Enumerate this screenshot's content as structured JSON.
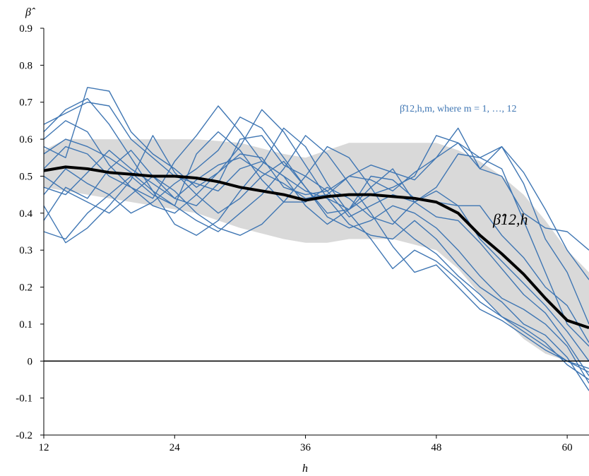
{
  "chart_data": {
    "type": "line",
    "ylabel": "β̂",
    "xlabel": "h",
    "xlim": [
      12,
      62
    ],
    "ylim": [
      -0.2,
      0.9
    ],
    "x_ticks": [
      12,
      24,
      36,
      48,
      60
    ],
    "x_tick_labels": [
      "12",
      "24",
      "36",
      "48",
      "60"
    ],
    "y_ticks": [
      -0.2,
      -0.1,
      0,
      0.1,
      0.2,
      0.3,
      0.4,
      0.5,
      0.6,
      0.7,
      0.8,
      0.9
    ],
    "y_tick_labels": [
      "-0.2",
      "-0.1",
      "0",
      "0.1",
      "0.2",
      "0.3",
      "0.4",
      "0.5",
      "0.6",
      "0.7",
      "0.8",
      "0.9"
    ],
    "grid": false,
    "zero_line": true,
    "annotations": [
      {
        "text": "β̂12,h,m, where m = 1, …, 12",
        "color": "#3f76b3"
      },
      {
        "text": "β̂12,h",
        "color": "#000000"
      }
    ],
    "band": {
      "x": [
        12,
        14,
        18,
        22,
        26,
        30,
        34,
        36,
        38,
        40,
        44,
        48,
        50,
        52,
        54,
        56,
        58,
        60,
        62
      ],
      "upper": [
        0.57,
        0.6,
        0.6,
        0.6,
        0.6,
        0.59,
        0.56,
        0.55,
        0.57,
        0.59,
        0.59,
        0.59,
        0.57,
        0.54,
        0.5,
        0.45,
        0.38,
        0.3,
        0.24
      ],
      "lower": [
        0.47,
        0.46,
        0.44,
        0.42,
        0.4,
        0.36,
        0.33,
        0.32,
        0.32,
        0.33,
        0.33,
        0.3,
        0.25,
        0.18,
        0.12,
        0.06,
        0.02,
        0.0,
        0.0
      ]
    },
    "mean_series": {
      "x": [
        12,
        14,
        16,
        18,
        20,
        22,
        24,
        26,
        28,
        30,
        32,
        34,
        36,
        38,
        40,
        42,
        44,
        46,
        48,
        50,
        52,
        54,
        56,
        58,
        60,
        62
      ],
      "values": [
        0.515,
        0.525,
        0.52,
        0.51,
        0.505,
        0.5,
        0.5,
        0.495,
        0.485,
        0.47,
        0.46,
        0.45,
        0.435,
        0.445,
        0.45,
        0.45,
        0.445,
        0.44,
        0.43,
        0.4,
        0.34,
        0.29,
        0.235,
        0.17,
        0.11,
        0.09
      ]
    },
    "series": [
      {
        "x": [
          12,
          14,
          16,
          18,
          20,
          22,
          24,
          26,
          28,
          30,
          32,
          34,
          36,
          38,
          40,
          42,
          44,
          46,
          48,
          50,
          52,
          54,
          56,
          58,
          60,
          62
        ],
        "values": [
          0.58,
          0.55,
          0.74,
          0.73,
          0.62,
          0.56,
          0.52,
          0.47,
          0.51,
          0.56,
          0.55,
          0.47,
          0.45,
          0.46,
          0.5,
          0.53,
          0.51,
          0.49,
          0.55,
          0.63,
          0.52,
          0.5,
          0.4,
          0.36,
          0.35,
          0.3
        ]
      },
      {
        "x": [
          12,
          14,
          16,
          18,
          20,
          22,
          24,
          26,
          28,
          30,
          32,
          34,
          36,
          38,
          40,
          42,
          44,
          46,
          48,
          50,
          52,
          54,
          56,
          58,
          60,
          62
        ],
        "values": [
          0.64,
          0.67,
          0.7,
          0.69,
          0.6,
          0.55,
          0.5,
          0.48,
          0.46,
          0.52,
          0.54,
          0.5,
          0.46,
          0.44,
          0.41,
          0.45,
          0.47,
          0.5,
          0.61,
          0.59,
          0.52,
          0.58,
          0.48,
          0.33,
          0.24,
          0.1
        ]
      },
      {
        "x": [
          12,
          14,
          16,
          18,
          20,
          22,
          24,
          26,
          28,
          30,
          32,
          34,
          36,
          38,
          40,
          42,
          44,
          46,
          48,
          50,
          52,
          54,
          56,
          58,
          60,
          62
        ],
        "values": [
          0.47,
          0.45,
          0.51,
          0.57,
          0.52,
          0.48,
          0.44,
          0.49,
          0.53,
          0.55,
          0.51,
          0.48,
          0.44,
          0.45,
          0.5,
          0.49,
          0.46,
          0.51,
          0.55,
          0.59,
          0.55,
          0.52,
          0.38,
          0.24,
          0.1,
          0.04
        ]
      },
      {
        "x": [
          12,
          14,
          16,
          18,
          20,
          22,
          24,
          26,
          28,
          30,
          32,
          34,
          36,
          38,
          40,
          42,
          44,
          46,
          48,
          50,
          52,
          54,
          56,
          58,
          60,
          62
        ],
        "values": [
          0.38,
          0.47,
          0.44,
          0.52,
          0.57,
          0.5,
          0.44,
          0.42,
          0.48,
          0.6,
          0.61,
          0.53,
          0.5,
          0.46,
          0.39,
          0.42,
          0.45,
          0.43,
          0.47,
          0.56,
          0.55,
          0.58,
          0.51,
          0.41,
          0.3,
          0.22
        ]
      },
      {
        "x": [
          12,
          14,
          16,
          18,
          20,
          22,
          24,
          26,
          28,
          30,
          32,
          34,
          36,
          38,
          40,
          42,
          44,
          46,
          48,
          50,
          52,
          54,
          56,
          58,
          60,
          62
        ],
        "values": [
          0.42,
          0.32,
          0.36,
          0.42,
          0.49,
          0.61,
          0.51,
          0.45,
          0.4,
          0.44,
          0.5,
          0.54,
          0.47,
          0.4,
          0.41,
          0.5,
          0.49,
          0.44,
          0.43,
          0.42,
          0.42,
          0.34,
          0.28,
          0.2,
          0.15,
          0.05
        ]
      },
      {
        "x": [
          12,
          14,
          16,
          18,
          20,
          22,
          24,
          26,
          28,
          30,
          32,
          34,
          36,
          38,
          40,
          42,
          44,
          46,
          48,
          50,
          52,
          54,
          56,
          58,
          60,
          62
        ],
        "values": [
          0.35,
          0.33,
          0.4,
          0.45,
          0.5,
          0.45,
          0.42,
          0.56,
          0.62,
          0.57,
          0.49,
          0.43,
          0.43,
          0.47,
          0.44,
          0.39,
          0.37,
          0.43,
          0.46,
          0.42,
          0.33,
          0.27,
          0.21,
          0.15,
          0.08,
          0.0
        ]
      },
      {
        "x": [
          12,
          14,
          16,
          18,
          20,
          22,
          24,
          26,
          28,
          30,
          32,
          34,
          36,
          38,
          40,
          42,
          44,
          46,
          48,
          50,
          52,
          54,
          56,
          58,
          60,
          62
        ],
        "values": [
          0.6,
          0.65,
          0.62,
          0.53,
          0.47,
          0.44,
          0.54,
          0.61,
          0.69,
          0.62,
          0.54,
          0.5,
          0.42,
          0.37,
          0.41,
          0.47,
          0.52,
          0.43,
          0.39,
          0.38,
          0.32,
          0.25,
          0.18,
          0.13,
          0.05,
          -0.04
        ]
      },
      {
        "x": [
          12,
          14,
          16,
          18,
          20,
          22,
          24,
          26,
          28,
          30,
          32,
          34,
          36,
          38,
          40,
          42,
          44,
          46,
          48,
          50,
          52,
          54,
          56,
          58,
          60,
          62
        ],
        "values": [
          0.45,
          0.52,
          0.48,
          0.45,
          0.4,
          0.43,
          0.48,
          0.52,
          0.57,
          0.66,
          0.63,
          0.55,
          0.47,
          0.39,
          0.36,
          0.38,
          0.42,
          0.4,
          0.36,
          0.3,
          0.23,
          0.17,
          0.14,
          0.1,
          0.04,
          -0.06
        ]
      },
      {
        "x": [
          12,
          14,
          16,
          18,
          20,
          22,
          24,
          26,
          28,
          30,
          32,
          34,
          36,
          38,
          40,
          42,
          44,
          46,
          48,
          50,
          52,
          54,
          56,
          58,
          60,
          62
        ],
        "values": [
          0.52,
          0.58,
          0.56,
          0.5,
          0.47,
          0.42,
          0.4,
          0.45,
          0.51,
          0.58,
          0.68,
          0.62,
          0.53,
          0.44,
          0.37,
          0.34,
          0.33,
          0.38,
          0.33,
          0.26,
          0.2,
          0.16,
          0.1,
          0.07,
          0.01,
          -0.08
        ]
      },
      {
        "x": [
          12,
          14,
          16,
          18,
          20,
          22,
          24,
          26,
          28,
          30,
          32,
          34,
          36,
          38,
          40,
          42,
          44,
          46,
          48,
          50,
          52,
          54,
          56,
          58,
          60,
          62
        ],
        "values": [
          0.62,
          0.68,
          0.71,
          0.64,
          0.55,
          0.46,
          0.37,
          0.34,
          0.38,
          0.46,
          0.53,
          0.63,
          0.58,
          0.48,
          0.4,
          0.33,
          0.25,
          0.3,
          0.27,
          0.22,
          0.16,
          0.12,
          0.09,
          0.05,
          -0.01,
          -0.05
        ]
      },
      {
        "x": [
          12,
          14,
          16,
          18,
          20,
          22,
          24,
          26,
          28,
          30,
          32,
          34,
          36,
          38,
          40,
          42,
          44,
          46,
          48,
          50,
          52,
          54,
          56,
          58,
          60,
          62
        ],
        "values": [
          0.56,
          0.6,
          0.58,
          0.55,
          0.51,
          0.46,
          0.42,
          0.38,
          0.35,
          0.4,
          0.45,
          0.52,
          0.61,
          0.56,
          0.48,
          0.4,
          0.31,
          0.24,
          0.26,
          0.2,
          0.14,
          0.11,
          0.07,
          0.03,
          0.0,
          -0.03
        ]
      },
      {
        "x": [
          12,
          14,
          16,
          18,
          20,
          22,
          24,
          26,
          28,
          30,
          32,
          34,
          36,
          38,
          40,
          42,
          44,
          46,
          48,
          50,
          52,
          54,
          56,
          58,
          60,
          62
        ],
        "values": [
          0.5,
          0.46,
          0.43,
          0.4,
          0.45,
          0.5,
          0.46,
          0.4,
          0.36,
          0.34,
          0.37,
          0.43,
          0.5,
          0.58,
          0.55,
          0.47,
          0.38,
          0.33,
          0.29,
          0.23,
          0.18,
          0.12,
          0.08,
          0.04,
          0.0,
          -0.02
        ]
      }
    ]
  }
}
